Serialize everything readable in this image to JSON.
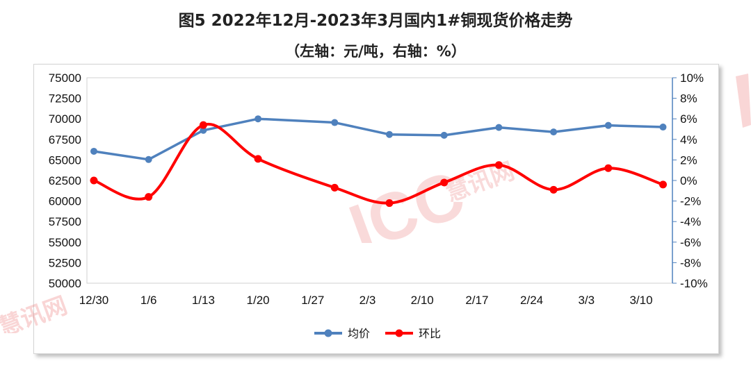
{
  "chart_data": {
    "type": "line",
    "title": "图5 2022年12月-2023年3月国内1#铜现货价格走势",
    "subtitle": "（左轴：元/吨，右轴：%）",
    "categories": [
      "12/30",
      "1/6",
      "1/13",
      "1/20",
      "1/27",
      "2/3",
      "2/10",
      "2/17",
      "2/24",
      "3/3",
      "3/10"
    ],
    "y_left": {
      "ticks": [
        "75000",
        "72500",
        "70000",
        "67500",
        "65000",
        "62500",
        "60000",
        "57500",
        "55000",
        "52500",
        "50000"
      ],
      "ylim": [
        50000,
        75000
      ]
    },
    "y_right": {
      "ticks": [
        "10%",
        "8%",
        "6%",
        "4%",
        "2%",
        "0%",
        "-2%",
        "-4%",
        "-6%",
        "-8%",
        "-10%"
      ],
      "ylim": [
        -10,
        10
      ]
    },
    "grid": false,
    "legend_position": "bottom-center",
    "series": [
      {
        "name": "均价",
        "axis": "left",
        "color": "#4f81bd",
        "smooth": false,
        "x": [
          0,
          1,
          2,
          3,
          4.4,
          5.4,
          6.4,
          7.4,
          8.4,
          9.4,
          10.4
        ],
        "values": [
          66050,
          65050,
          68600,
          70000,
          69550,
          68100,
          68000,
          68950,
          68400,
          69200,
          69000
        ]
      },
      {
        "name": "环比",
        "axis": "right",
        "color": "#ff0000",
        "smooth": true,
        "x": [
          0,
          1,
          2,
          3,
          4.4,
          5.4,
          6.4,
          7.4,
          8.4,
          9.4,
          10.4
        ],
        "values": [
          0.0,
          -1.6,
          5.4,
          2.1,
          -0.7,
          -2.2,
          -0.2,
          1.5,
          -0.9,
          1.2,
          -0.4
        ]
      }
    ]
  },
  "watermark": {
    "brand": "ICC",
    "text": "慧讯网"
  }
}
